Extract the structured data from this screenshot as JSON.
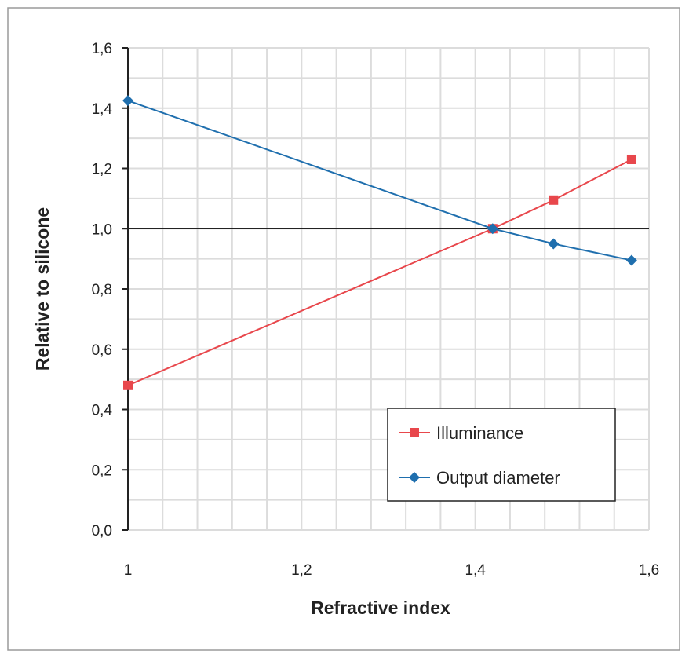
{
  "chart_data": {
    "type": "line",
    "title": "",
    "xlabel": "Refractive index",
    "ylabel": "Relative to silicone",
    "xlim": [
      1,
      1.6
    ],
    "ylim": [
      0,
      1.6
    ],
    "x_ticks": [
      "1",
      "1,2",
      "1,4",
      "1,6"
    ],
    "y_ticks": [
      "0,0",
      "0,2",
      "0,4",
      "0,6",
      "0,8",
      "1,0",
      "1,2",
      "1,4",
      "1,6"
    ],
    "grid": true,
    "reference_line": 1.0,
    "legend_position": "bottom-right",
    "series": [
      {
        "name": "Illuminance",
        "color": "#e8474c",
        "marker": "square",
        "x": [
          1,
          1.42,
          1.49,
          1.58
        ],
        "y": [
          0.48,
          1.0,
          1.095,
          1.23
        ]
      },
      {
        "name": "Output diameter",
        "color": "#1f6fae",
        "marker": "diamond",
        "x": [
          1,
          1.42,
          1.49,
          1.58
        ],
        "y": [
          1.425,
          1.0,
          0.95,
          0.895
        ]
      }
    ]
  }
}
